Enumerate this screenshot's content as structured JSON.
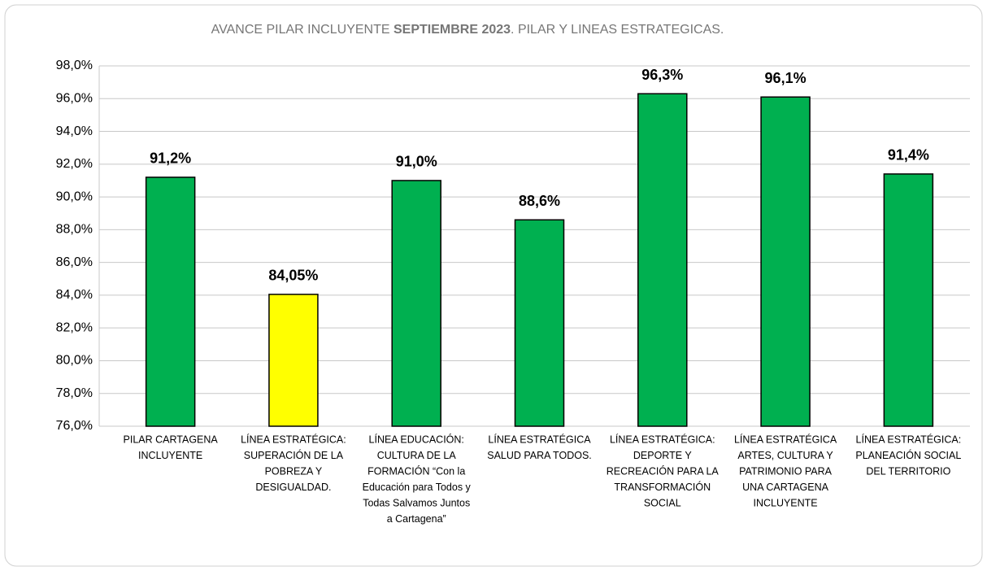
{
  "chart_data": {
    "type": "bar",
    "title": [
      "AVANCE PILAR INCLUYENTE ",
      "SEPTIEMBRE 2023",
      ". PILAR Y LINEAS ESTRATEGICAS."
    ],
    "categories": [
      [
        "PILAR CARTAGENA",
        "INCLUYENTE"
      ],
      [
        "LÍNEA ESTRATÉGICA:",
        "SUPERACIÓN DE LA",
        "POBREZA Y",
        "DESIGUALDAD."
      ],
      [
        "LÍNEA EDUCACIÓN:",
        "CULTURA DE LA",
        "FORMACIÓN “Con la",
        "Educación para Todos y",
        "Todas Salvamos Juntos",
        "a Cartagena”"
      ],
      [
        "LÍNEA ESTRATÉGICA",
        "SALUD PARA TODOS."
      ],
      [
        "LÍNEA ESTRATÉGICA:",
        "DEPORTE Y",
        "RECREACIÓN PARA  LA",
        "TRANSFORMACIÓN",
        "SOCIAL"
      ],
      [
        "LÍNEA ESTRATÉGICA",
        "ARTES, CULTURA Y",
        "PATRIMONIO PARA",
        "UNA CARTAGENA",
        "INCLUYENTE"
      ],
      [
        "LÍNEA ESTRATÉGICA:",
        "PLANEACIÓN SOCIAL",
        "DEL TERRITORIO"
      ]
    ],
    "values": [
      91.2,
      84.05,
      91.0,
      88.6,
      96.3,
      96.1,
      91.4
    ],
    "value_labels": [
      "91,2%",
      "84,05%",
      "91,0%",
      "88,6%",
      "96,3%",
      "96,1%",
      "91,4%"
    ],
    "colors": [
      "#00b050",
      "#ffff00",
      "#00b050",
      "#00b050",
      "#00b050",
      "#00b050",
      "#00b050"
    ],
    "ylim": [
      76,
      98
    ],
    "yticks": [
      {
        "value": 76,
        "label": "76,0%"
      },
      {
        "value": 78,
        "label": "78,0%"
      },
      {
        "value": 80,
        "label": "80,0%"
      },
      {
        "value": 82,
        "label": "82,0%"
      },
      {
        "value": 84,
        "label": "84,0%"
      },
      {
        "value": 86,
        "label": "86,0%"
      },
      {
        "value": 88,
        "label": "88,0%"
      },
      {
        "value": 90,
        "label": "90,0%"
      },
      {
        "value": 92,
        "label": "92,0%"
      },
      {
        "value": 94,
        "label": "94,0%"
      },
      {
        "value": 96,
        "label": "96,0%"
      },
      {
        "value": 98,
        "label": "98,0%"
      }
    ],
    "grid": true
  }
}
